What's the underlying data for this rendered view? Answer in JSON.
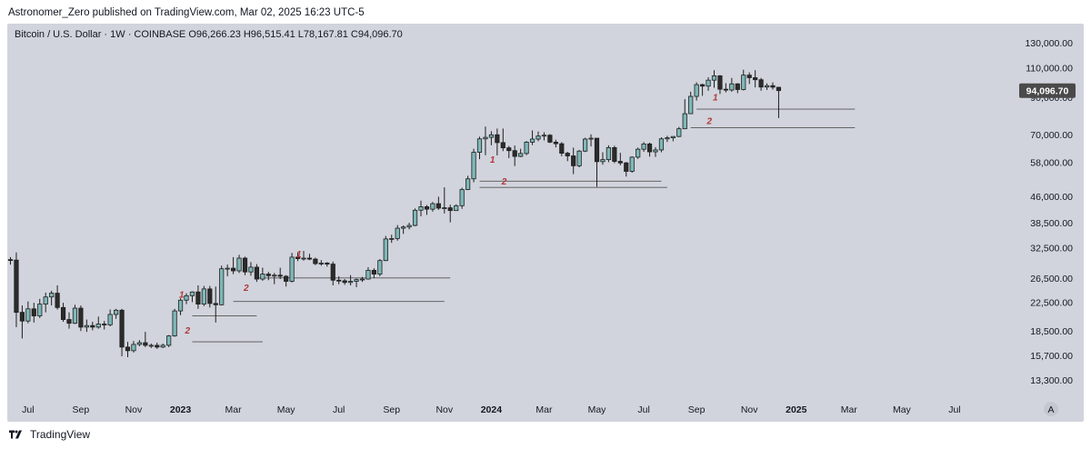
{
  "header": {
    "text": "Astronomer_Zero published on TradingView.com, Mar 02, 2025 16:23 UTC-5"
  },
  "legend": {
    "text": "Bitcoin / U.S. Dollar · 1W · COINBASE  O96,266.23  H96,515.41  L78,167.81  C94,096.70"
  },
  "footer": {
    "brand": "TradingView",
    "icon": "tradingview-logo-icon"
  },
  "colors": {
    "bg": "#d1d4dc",
    "up": "#7fb8b8",
    "down": "#2b2b2b",
    "wick": "#1e1e1e",
    "level": "#555555",
    "annotation": "#b2363a",
    "price_tag": "#4a4a4a"
  },
  "chart_data": {
    "type": "candlestick",
    "title": "Bitcoin / U.S. Dollar · 1W · COINBASE",
    "scale": "log",
    "ylim": [
      12500,
      135000
    ],
    "ohlc_last": {
      "open": 96266.23,
      "high": 96515.41,
      "low": 78167.81,
      "close": 94096.7
    },
    "current_price_label": "94,096.70",
    "y_ticks": [
      {
        "v": 130000,
        "label": "130,000.00"
      },
      {
        "v": 110000,
        "label": "110,000.00"
      },
      {
        "v": 90000,
        "label": "90,000.00"
      },
      {
        "v": 70000,
        "label": "70,000.00"
      },
      {
        "v": 58000,
        "label": "58,000.00"
      },
      {
        "v": 46000,
        "label": "46,000.00"
      },
      {
        "v": 38500,
        "label": "38,500.00"
      },
      {
        "v": 32500,
        "label": "32,500.00"
      },
      {
        "v": 26500,
        "label": "26,500.00"
      },
      {
        "v": 22500,
        "label": "22,500.00"
      },
      {
        "v": 18500,
        "label": "18,500.00"
      },
      {
        "v": 15700,
        "label": "15,700.00"
      },
      {
        "v": 13300,
        "label": "13,300.00"
      }
    ],
    "x_ticks": [
      {
        "week": 3,
        "label": "Jul",
        "year": false
      },
      {
        "week": 12,
        "label": "Sep",
        "year": false
      },
      {
        "week": 21,
        "label": "Nov",
        "year": false
      },
      {
        "week": 29,
        "label": "2023",
        "year": true
      },
      {
        "week": 38,
        "label": "Mar",
        "year": false
      },
      {
        "week": 47,
        "label": "May",
        "year": false
      },
      {
        "week": 56,
        "label": "Jul",
        "year": false
      },
      {
        "week": 65,
        "label": "Sep",
        "year": false
      },
      {
        "week": 74,
        "label": "Nov",
        "year": false
      },
      {
        "week": 82,
        "label": "2024",
        "year": true
      },
      {
        "week": 91,
        "label": "Mar",
        "year": false
      },
      {
        "week": 100,
        "label": "May",
        "year": false
      },
      {
        "week": 108,
        "label": "Jul",
        "year": false
      },
      {
        "week": 117,
        "label": "Sep",
        "year": false
      },
      {
        "week": 126,
        "label": "Nov",
        "year": false
      },
      {
        "week": 134,
        "label": "2025",
        "year": true
      },
      {
        "week": 143,
        "label": "Mar",
        "year": false
      },
      {
        "week": 152,
        "label": "May",
        "year": false
      },
      {
        "week": 161,
        "label": "Jul",
        "year": false
      }
    ],
    "candles": [
      [
        30000,
        30500,
        29000,
        29900
      ],
      [
        29900,
        31500,
        19000,
        21000
      ],
      [
        21000,
        22000,
        17600,
        19800
      ],
      [
        19800,
        22600,
        19500,
        21500
      ],
      [
        21500,
        22400,
        19600,
        20500
      ],
      [
        20500,
        23000,
        20200,
        22200
      ],
      [
        22200,
        24000,
        21000,
        23300
      ],
      [
        23300,
        24300,
        22000,
        23900
      ],
      [
        23900,
        25200,
        21400,
        21700
      ],
      [
        21700,
        22400,
        19700,
        20000
      ],
      [
        20000,
        21000,
        18800,
        19500
      ],
      [
        19500,
        22100,
        19400,
        21600
      ],
      [
        21600,
        22000,
        18500,
        19000
      ],
      [
        19000,
        20000,
        18400,
        19200
      ],
      [
        19200,
        19700,
        18600,
        19000
      ],
      [
        19000,
        20400,
        18800,
        19400
      ],
      [
        19400,
        19800,
        18700,
        19300
      ],
      [
        19300,
        21400,
        19100,
        20700
      ],
      [
        20700,
        21500,
        20100,
        21300
      ],
      [
        21300,
        21500,
        15600,
        16600
      ],
      [
        16600,
        17200,
        15500,
        16200
      ],
      [
        16200,
        17300,
        16000,
        16900
      ],
      [
        16900,
        17400,
        16700,
        17100
      ],
      [
        17100,
        18400,
        16600,
        16800
      ],
      [
        16800,
        17000,
        16500,
        16800
      ],
      [
        16800,
        17100,
        16400,
        16600
      ],
      [
        16600,
        17000,
        16500,
        16800
      ],
      [
        16800,
        18000,
        16600,
        17900
      ],
      [
        17900,
        21500,
        17800,
        21200
      ],
      [
        21200,
        23100,
        20600,
        22800
      ],
      [
        22800,
        23900,
        22200,
        23500
      ],
      [
        23500,
        24200,
        22500,
        24100
      ],
      [
        24100,
        25200,
        21500,
        22200
      ],
      [
        22200,
        25100,
        21900,
        24600
      ],
      [
        24600,
        25100,
        21700,
        22300
      ],
      [
        22300,
        25000,
        19600,
        22100
      ],
      [
        22100,
        28800,
        22000,
        28200
      ],
      [
        28200,
        29000,
        26800,
        28300
      ],
      [
        28300,
        30500,
        27200,
        27800
      ],
      [
        27800,
        31000,
        27400,
        30300
      ],
      [
        30300,
        30600,
        27000,
        27600
      ],
      [
        27600,
        29500,
        26900,
        28500
      ],
      [
        28500,
        29100,
        25800,
        26300
      ],
      [
        26300,
        28400,
        26000,
        27200
      ],
      [
        27200,
        27600,
        26100,
        26900
      ],
      [
        26900,
        27400,
        25400,
        27000
      ],
      [
        27000,
        28400,
        26300,
        26800
      ],
      [
        26800,
        27000,
        25000,
        25900
      ],
      [
        25900,
        31400,
        25700,
        30500
      ],
      [
        30500,
        31500,
        29700,
        30200
      ],
      [
        30200,
        31800,
        29800,
        30300
      ],
      [
        30300,
        31200,
        29900,
        30100
      ],
      [
        30100,
        30400,
        28900,
        29200
      ],
      [
        29200,
        29900,
        28800,
        29300
      ],
      [
        29300,
        29500,
        28600,
        29100
      ],
      [
        29100,
        29600,
        25200,
        26100
      ],
      [
        26100,
        26800,
        25400,
        26000
      ],
      [
        26000,
        26300,
        25300,
        25700
      ],
      [
        25700,
        27000,
        25200,
        25900
      ],
      [
        25900,
        26400,
        24900,
        26200
      ],
      [
        26200,
        26700,
        25800,
        26300
      ],
      [
        26300,
        28500,
        26200,
        27900
      ],
      [
        27900,
        28300,
        26500,
        27200
      ],
      [
        27200,
        30100,
        26800,
        29800
      ],
      [
        29800,
        35200,
        29700,
        34500
      ],
      [
        34500,
        35500,
        33600,
        34600
      ],
      [
        34600,
        37900,
        34100,
        37100
      ],
      [
        37100,
        37800,
        35700,
        37400
      ],
      [
        37400,
        38500,
        36800,
        37800
      ],
      [
        37800,
        42400,
        37600,
        41900
      ],
      [
        41900,
        44700,
        40200,
        42900
      ],
      [
        42900,
        43400,
        40600,
        42200
      ],
      [
        42200,
        44300,
        41500,
        43800
      ],
      [
        43800,
        45900,
        42000,
        42500
      ],
      [
        42500,
        48900,
        41000,
        42600
      ],
      [
        42600,
        43500,
        38600,
        41800
      ],
      [
        41800,
        43600,
        41700,
        43200
      ],
      [
        43200,
        48800,
        42300,
        48200
      ],
      [
        48200,
        52900,
        48000,
        51800
      ],
      [
        51800,
        63500,
        50600,
        62000
      ],
      [
        62000,
        68900,
        59200,
        67900
      ],
      [
        67900,
        73800,
        60800,
        68600
      ],
      [
        68600,
        71500,
        65000,
        69800
      ],
      [
        69800,
        72800,
        60700,
        66200
      ],
      [
        66200,
        72800,
        62500,
        63900
      ],
      [
        63900,
        64700,
        59600,
        62700
      ],
      [
        62700,
        64900,
        56500,
        60300
      ],
      [
        60300,
        63500,
        60000,
        61500
      ],
      [
        61500,
        66900,
        60800,
        66400
      ],
      [
        66400,
        71900,
        65100,
        67800
      ],
      [
        67800,
        71400,
        66800,
        69200
      ],
      [
        69200,
        71000,
        67200,
        69600
      ],
      [
        69600,
        70100,
        66000,
        66400
      ],
      [
        66400,
        67500,
        64100,
        65700
      ],
      [
        65700,
        66400,
        60400,
        61600
      ],
      [
        61600,
        62200,
        58400,
        60500
      ],
      [
        60500,
        64000,
        53500,
        56600
      ],
      [
        56600,
        63000,
        56000,
        62500
      ],
      [
        62500,
        68400,
        62100,
        67800
      ],
      [
        67800,
        70000,
        64500,
        68200
      ],
      [
        68200,
        68300,
        49100,
        58200
      ],
      [
        58200,
        62000,
        57000,
        59000
      ],
      [
        59000,
        65000,
        58000,
        64000
      ],
      [
        64000,
        64800,
        57600,
        58300
      ],
      [
        58300,
        61800,
        56800,
        57700
      ],
      [
        57700,
        58100,
        52600,
        54500
      ],
      [
        54500,
        60300,
        54000,
        60000
      ],
      [
        60000,
        64000,
        59300,
        63300
      ],
      [
        63300,
        66400,
        62200,
        65600
      ],
      [
        65600,
        66200,
        60200,
        62200
      ],
      [
        62200,
        64200,
        60100,
        63000
      ],
      [
        63000,
        68600,
        62000,
        67900
      ],
      [
        67900,
        69300,
        66500,
        68400
      ],
      [
        68400,
        69100,
        66800,
        69000
      ],
      [
        69000,
        73600,
        68700,
        72700
      ],
      [
        72700,
        88800,
        72500,
        80500
      ],
      [
        80500,
        93400,
        80300,
        90500
      ],
      [
        90500,
        99500,
        88000,
        98000
      ],
      [
        98000,
        98600,
        90900,
        97000
      ],
      [
        97000,
        103000,
        94000,
        101000
      ],
      [
        101000,
        108000,
        96000,
        104000
      ],
      [
        104000,
        104500,
        92000,
        95000
      ],
      [
        95000,
        99000,
        93000,
        94500
      ],
      [
        94500,
        102500,
        93400,
        98500
      ],
      [
        98500,
        99000,
        92500,
        94800
      ],
      [
        94800,
        108400,
        94200,
        104500
      ],
      [
        104500,
        106500,
        98400,
        102700
      ],
      [
        102700,
        108000,
        96200,
        101300
      ],
      [
        101300,
        102500,
        94000,
        96400
      ],
      [
        96400,
        98800,
        94500,
        97300
      ],
      [
        97300,
        99500,
        94800,
        96300
      ],
      [
        96266.23,
        96515.41,
        78167.81,
        94096.7
      ]
    ],
    "levels": [
      {
        "price": 17200,
        "from": 31,
        "to": 43
      },
      {
        "price": 20500,
        "from": 31,
        "to": 42
      },
      {
        "price": 22600,
        "from": 38,
        "to": 74
      },
      {
        "price": 26500,
        "from": 42,
        "to": 75
      },
      {
        "price": 48900,
        "from": 80,
        "to": 112
      },
      {
        "price": 51000,
        "from": 80,
        "to": 111
      },
      {
        "price": 83000,
        "from": 117,
        "to": 144
      },
      {
        "price": 73200,
        "from": 116,
        "to": 144
      }
    ],
    "annotations": [
      {
        "label": "1",
        "week": 30,
        "price": 23200
      },
      {
        "label": "2",
        "week": 31,
        "price": 18200
      },
      {
        "label": "1",
        "week": 50,
        "price": 30500
      },
      {
        "label": "2",
        "week": 41,
        "price": 24300
      },
      {
        "label": "1",
        "week": 83,
        "price": 57800
      },
      {
        "label": "2",
        "week": 85,
        "price": 49800
      },
      {
        "label": "1",
        "week": 121,
        "price": 88000
      },
      {
        "label": "2",
        "week": 120,
        "price": 75000
      }
    ],
    "scale_button": "A"
  }
}
